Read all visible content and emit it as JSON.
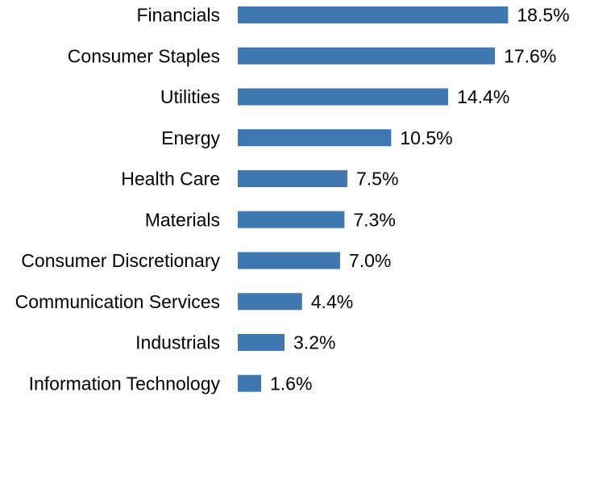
{
  "chart_data": {
    "type": "bar",
    "orientation": "horizontal",
    "categories": [
      "Financials",
      "Consumer Staples",
      "Utilities",
      "Energy",
      "Health Care",
      "Materials",
      "Consumer Discretionary",
      "Communication Services",
      "Industrials",
      "Information Technology"
    ],
    "values": [
      18.5,
      17.6,
      14.4,
      10.5,
      7.5,
      7.3,
      7.0,
      4.4,
      3.2,
      1.6
    ],
    "value_labels": [
      "18.5%",
      "17.6%",
      "14.4%",
      "10.5%",
      "7.5%",
      "7.3%",
      "7.0%",
      "4.4%",
      "3.2%",
      "1.6%"
    ],
    "unit": "%",
    "title": "",
    "xlabel": "",
    "ylabel": "",
    "xlim": [
      0,
      20
    ],
    "grid": false,
    "legend": "none",
    "bar_color": "#3f78b0"
  }
}
